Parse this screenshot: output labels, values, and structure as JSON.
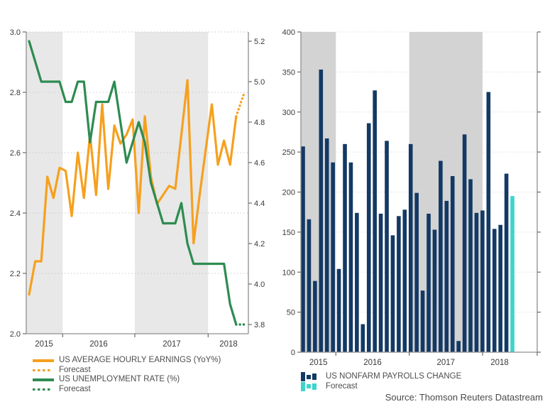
{
  "source": "Source: Thomson Reuters Datastream",
  "colors": {
    "earnings_orange": "#f6a01e",
    "unemployment_green": "#2e8b51",
    "payrolls_navy": "#133964",
    "forecast_cyan": "#3dd4cd",
    "band_gray_left": "#e8e8e8",
    "band_gray_right": "#d3d3d3",
    "grid": "#c9c9c9",
    "axis": "#8f8f8f",
    "tick": "#6b6b6b",
    "tick_text": "#3a3a3a",
    "legend_text": "#4d4d4d"
  },
  "chart_data": [
    {
      "type": "line",
      "title": "",
      "frequency_note": "monthly points, solid = actual, dotted = forecast",
      "x_labels": [
        "2015",
        "2016",
        "2017",
        "2018"
      ],
      "shaded_years": [
        "2015",
        "2017"
      ],
      "left_axis": {
        "label": "",
        "min": 2.0,
        "max": 3.0,
        "ticks": [
          "3.0",
          "2.8",
          "2.6",
          "2.4",
          "2.2",
          "2.0"
        ],
        "grid": true
      },
      "right_axis": {
        "label": "",
        "min": 3.8,
        "max": 5.2,
        "ticks": [
          "5.2",
          "5.0",
          "4.8",
          "4.6",
          "4.4",
          "4.2",
          "4.0",
          "3.8"
        ]
      },
      "legend_position": "bottom-left",
      "series": [
        {
          "name": "US AVERAGE HOURLY EARNINGS (YoY%)",
          "axis": "left",
          "color_key": "earnings_orange",
          "values": [
            2.13,
            2.24,
            2.24,
            2.52,
            2.45,
            2.55,
            2.54,
            2.39,
            2.6,
            2.45,
            2.66,
            2.46,
            2.76,
            2.48,
            2.69,
            2.63,
            2.66,
            2.71,
            2.4,
            2.72,
            2.52,
            2.43,
            2.46,
            2.49,
            2.48,
            2.66,
            2.84,
            2.3,
            2.46,
            2.61,
            2.76,
            2.56,
            2.64,
            2.56,
            2.72
          ],
          "forecast_value": 2.8,
          "forecast_label": "Forecast"
        },
        {
          "name": "US UNEMPLOYMENT RATE (%)",
          "axis": "right",
          "color_key": "unemployment_green",
          "values": [
            5.2,
            5.1,
            5.0,
            5.0,
            5.0,
            5.0,
            4.9,
            4.9,
            5.0,
            5.0,
            4.7,
            4.9,
            4.9,
            4.9,
            5.0,
            4.8,
            4.6,
            4.7,
            4.8,
            4.7,
            4.5,
            4.4,
            4.3,
            4.3,
            4.3,
            4.4,
            4.2,
            4.1,
            4.1,
            4.1,
            4.1,
            4.1,
            4.1,
            3.9,
            3.8
          ],
          "forecast_value": 3.8,
          "forecast_label": "Forecast"
        }
      ]
    },
    {
      "type": "bar",
      "title": "",
      "frequency_note": "monthly bars, last cyan bar = forecast",
      "x_labels": [
        "2015",
        "2016",
        "2017",
        "2018"
      ],
      "shaded_years": [
        "2015",
        "2017"
      ],
      "ylim": [
        0,
        400
      ],
      "yticks": [
        "400",
        "350",
        "300",
        "250",
        "200",
        "150",
        "100",
        "50",
        "0"
      ],
      "grid": true,
      "legend_position": "bottom-left",
      "series": [
        {
          "name": "US NONFARM PAYROLLS CHANGE",
          "color_key": "payrolls_navy",
          "values": [
            257,
            166,
            89,
            353,
            267,
            237,
            104,
            260,
            237,
            174,
            35,
            286,
            327,
            173,
            264,
            146,
            170,
            178,
            260,
            199,
            77,
            173,
            153,
            239,
            189,
            220,
            14,
            272,
            216,
            174,
            177,
            325,
            154,
            159,
            223
          ]
        },
        {
          "name": "Forecast",
          "color_key": "forecast_cyan",
          "values": [
            195
          ]
        }
      ]
    }
  ]
}
